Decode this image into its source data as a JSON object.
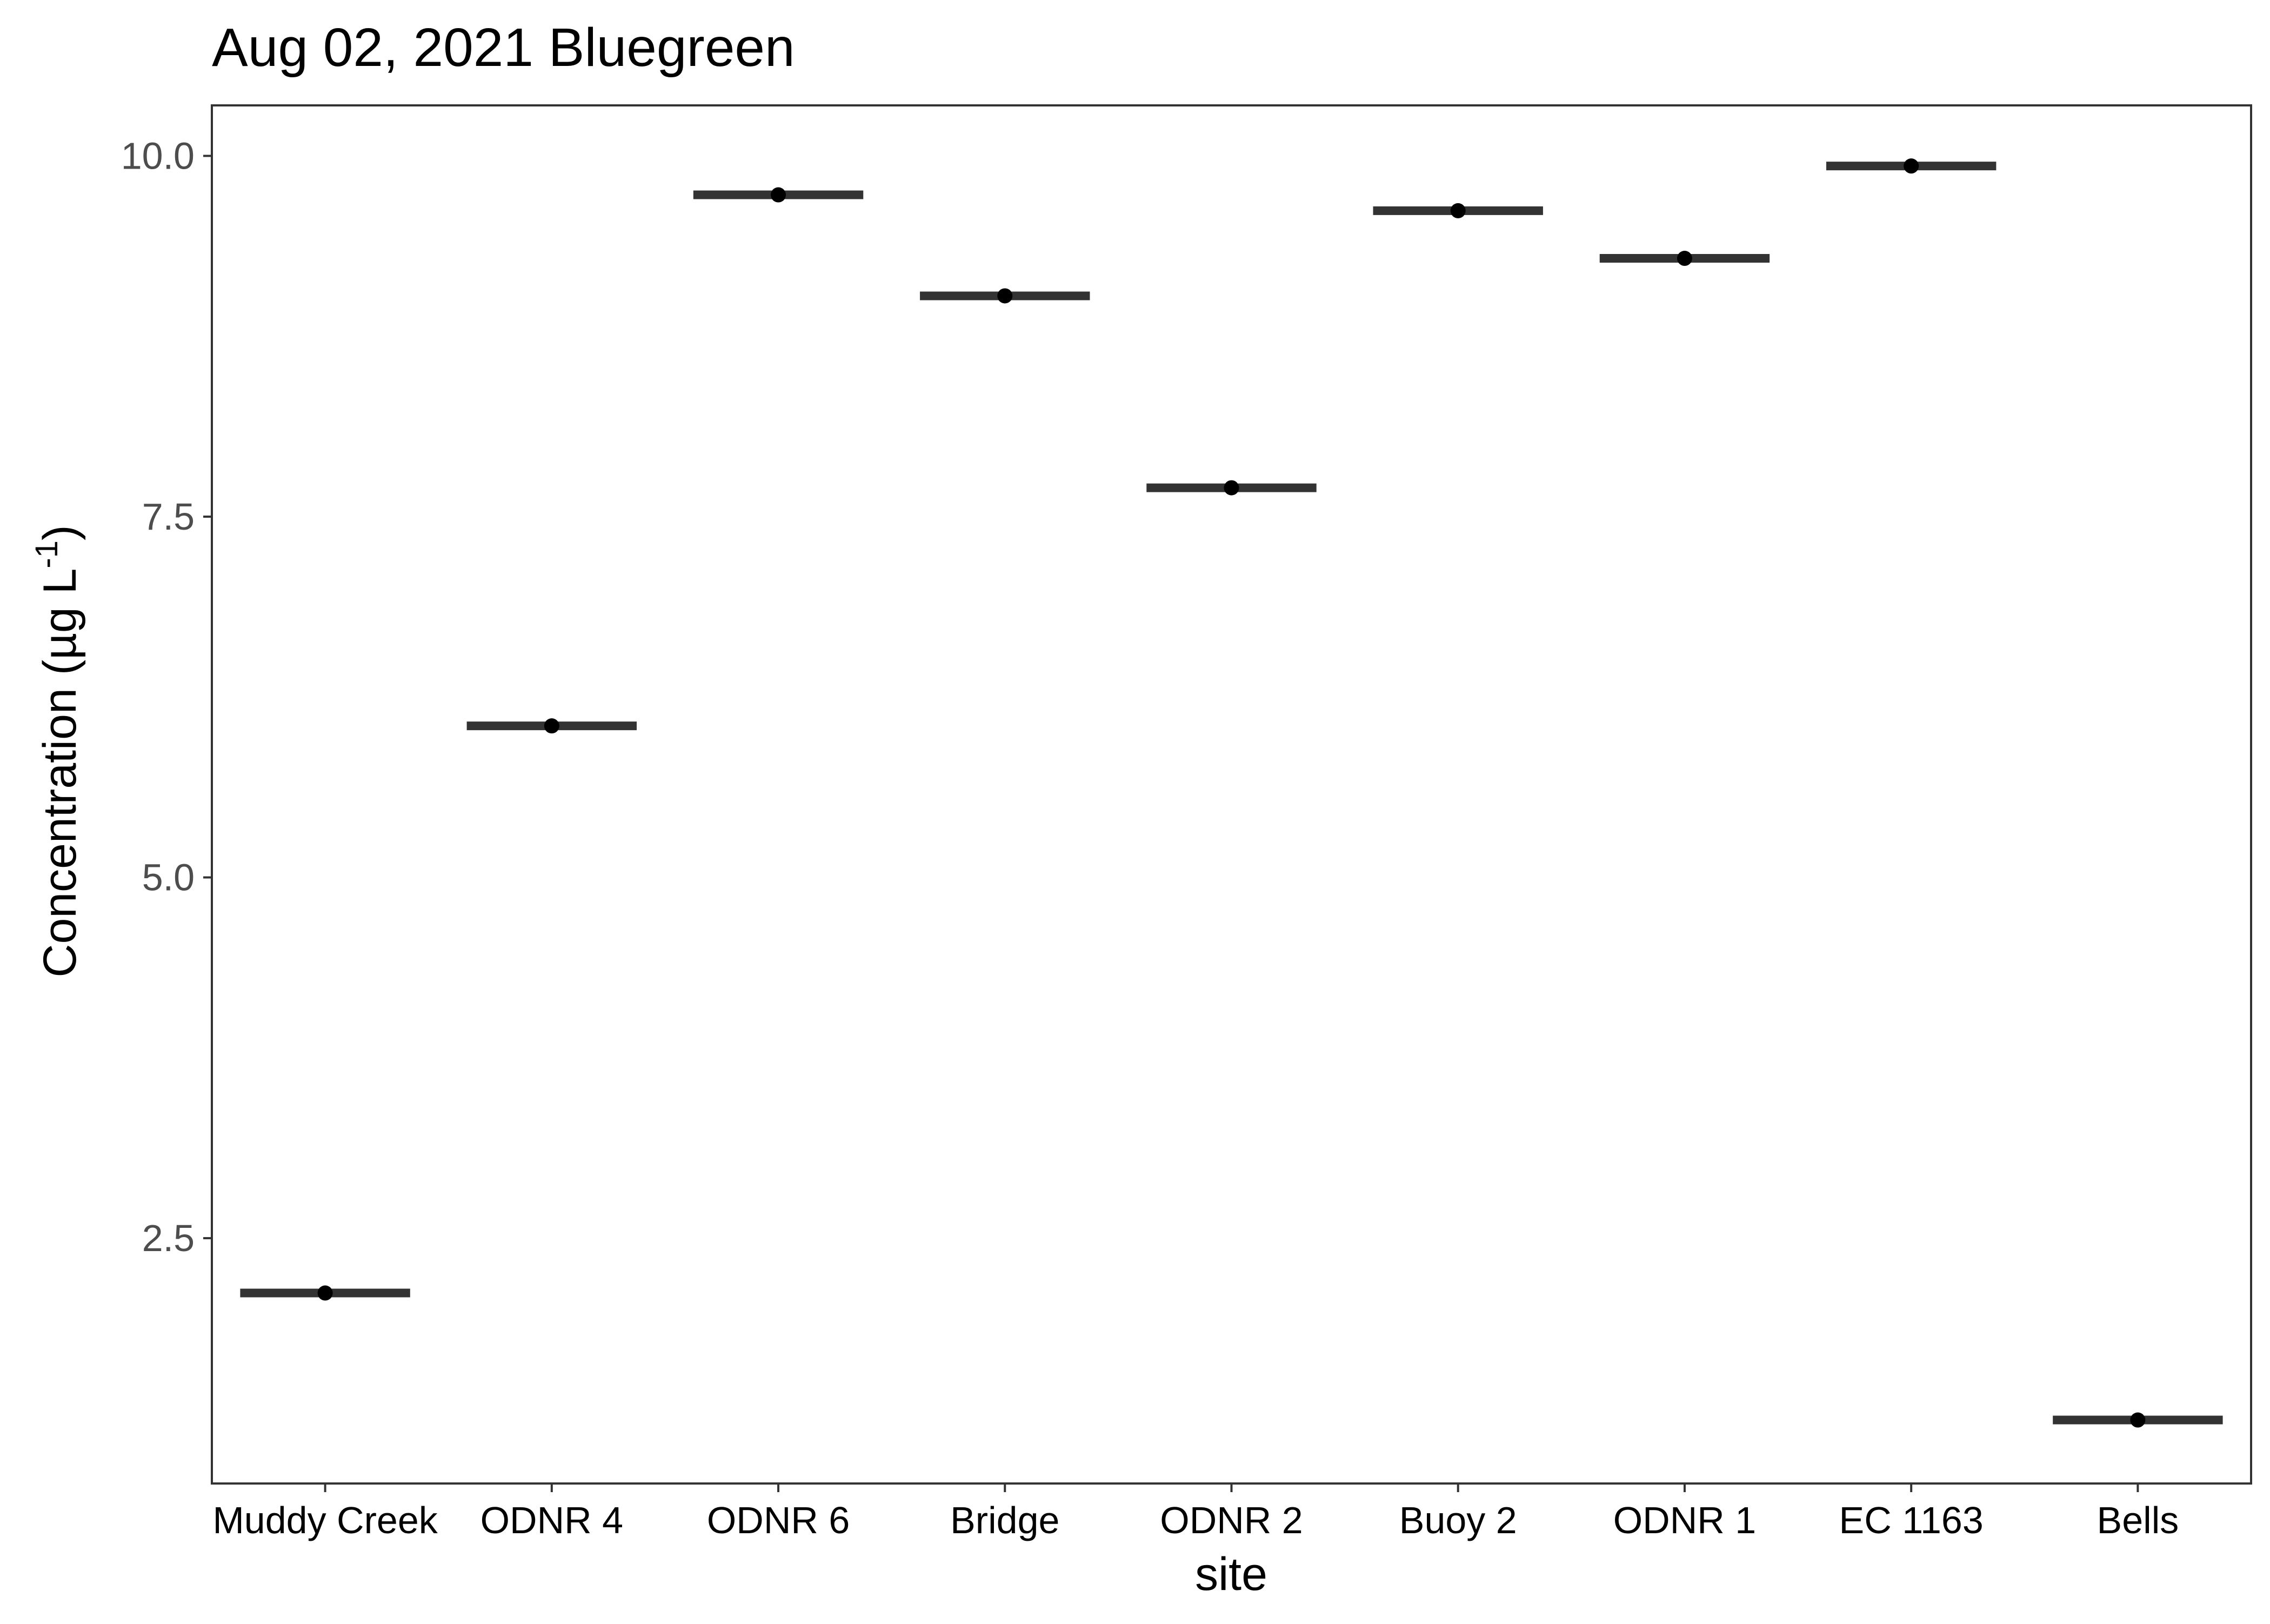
{
  "chart_data": {
    "type": "boxplot",
    "title": "Aug 02, 2021 Bluegreen",
    "xlabel": "site",
    "ylabel": {
      "prefix": "Concentration (µg L",
      "superscript": "-1",
      "suffix": ")"
    },
    "categories": [
      "Muddy Creek",
      "ODNR 4",
      "ODNR 6",
      "Bridge",
      "ODNR 2",
      "Buoy 2",
      "ODNR 1",
      "EC 1163",
      "Bells"
    ],
    "values": [
      2.12,
      6.05,
      9.73,
      9.03,
      7.7,
      9.62,
      9.29,
      9.93,
      1.24
    ],
    "ylim": [
      0.8,
      10.35
    ],
    "yticks": [
      2.5,
      5.0,
      7.5,
      10.0
    ],
    "ytick_labels": [
      "2.5",
      "5.0",
      "7.5",
      "10.0"
    ],
    "grid": false,
    "legend": "none",
    "colors": {
      "median_line": "#333333",
      "point": "#000000",
      "panel_border": "#333333",
      "tick": "#333333"
    }
  }
}
